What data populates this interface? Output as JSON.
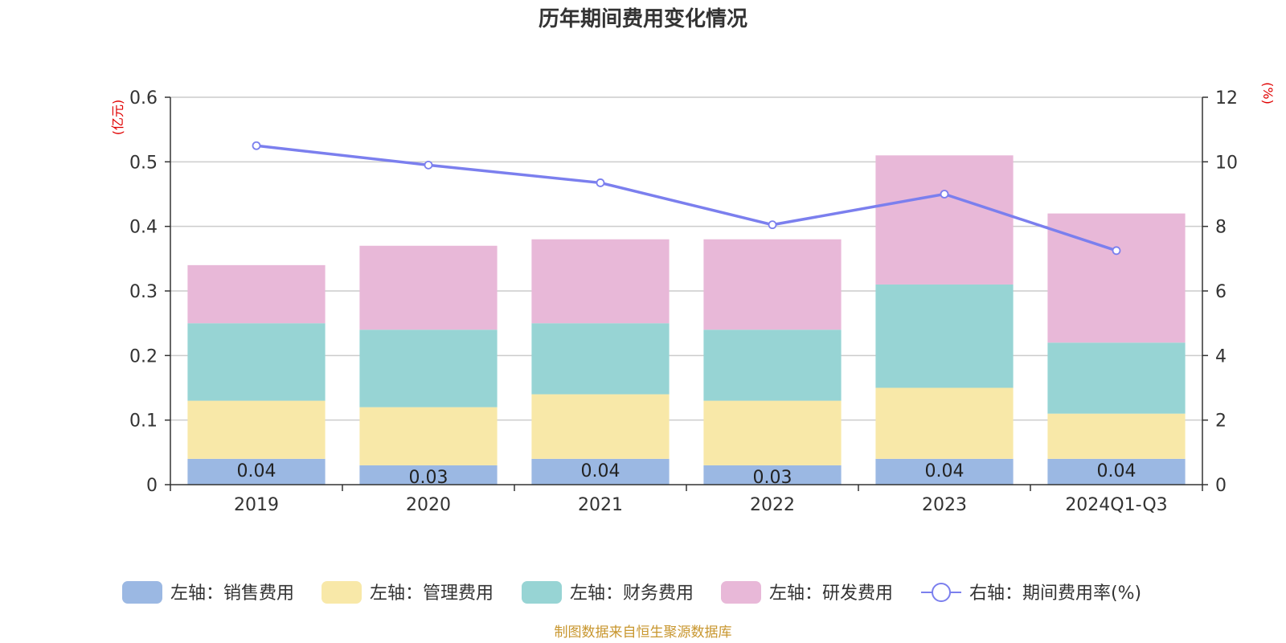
{
  "chart_data": {
    "type": "bar",
    "title": "历年期间费用变化情况",
    "categories": [
      "2019",
      "2020",
      "2021",
      "2022",
      "2023",
      "2024Q1-Q3"
    ],
    "y_left": {
      "unit": "(亿元)",
      "ylim": [
        0,
        0.6
      ],
      "ticks": [
        "0",
        "0.1",
        "0.2",
        "0.3",
        "0.4",
        "0.5",
        "0.6"
      ]
    },
    "y_right": {
      "unit": "(%)",
      "ylim": [
        0,
        12
      ],
      "ticks": [
        "0",
        "2",
        "4",
        "6",
        "8",
        "10",
        "12"
      ]
    },
    "series": [
      {
        "name": "左轴：销售费用",
        "kind": "bar",
        "color": "#9bb8e3",
        "values": [
          0.04,
          0.03,
          0.04,
          0.03,
          0.04,
          0.04
        ],
        "labels": [
          "0.04",
          "0.03",
          "0.04",
          "0.03",
          "0.04",
          "0.04"
        ]
      },
      {
        "name": "左轴：管理费用",
        "kind": "bar",
        "color": "#f8e8a8",
        "values": [
          0.09,
          0.09,
          0.1,
          0.1,
          0.11,
          0.07
        ]
      },
      {
        "name": "左轴：财务费用",
        "kind": "bar",
        "color": "#97d4d4",
        "values": [
          0.12,
          0.12,
          0.11,
          0.11,
          0.16,
          0.11
        ]
      },
      {
        "name": "左轴：研发费用",
        "kind": "bar",
        "color": "#e8b8d8",
        "values": [
          0.09,
          0.13,
          0.13,
          0.14,
          0.2,
          0.2
        ]
      },
      {
        "name": "右轴：期间费用率(%)",
        "kind": "line",
        "color": "#7b7fee",
        "values": [
          10.5,
          9.9,
          9.35,
          8.05,
          9.0,
          7.25
        ]
      }
    ],
    "grid": true,
    "legend": "bottom"
  },
  "source_note": "制图数据来自恒生聚源数据库"
}
